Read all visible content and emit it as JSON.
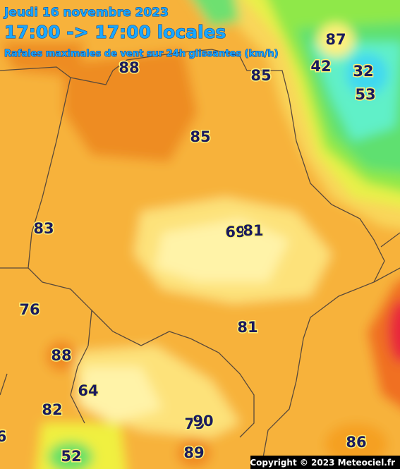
{
  "header": {
    "date": "Jeudi 16 novembre 2023",
    "time": "17:00 -> 17:00 locales",
    "subtitle": "Rafales maximales de vent sur 24h glissantes (km/h)"
  },
  "stations": [
    {
      "value": 87
    },
    {
      "value": 42
    },
    {
      "value": 32
    },
    {
      "value": 53
    },
    {
      "value": 88
    },
    {
      "value": 85
    },
    {
      "value": 85
    },
    {
      "value": 83
    },
    {
      "value": 69
    },
    {
      "value": 81
    },
    {
      "value": 76
    },
    {
      "value": 81
    },
    {
      "value": 88
    },
    {
      "value": 64
    },
    {
      "value": 82
    },
    {
      "value": 79
    },
    {
      "value": 90
    },
    {
      "value": 89
    },
    {
      "value": 52
    },
    {
      "value": 86
    },
    {
      "value": 6
    }
  ],
  "copyright": "Copyright © 2023 Meteociel.fr"
}
